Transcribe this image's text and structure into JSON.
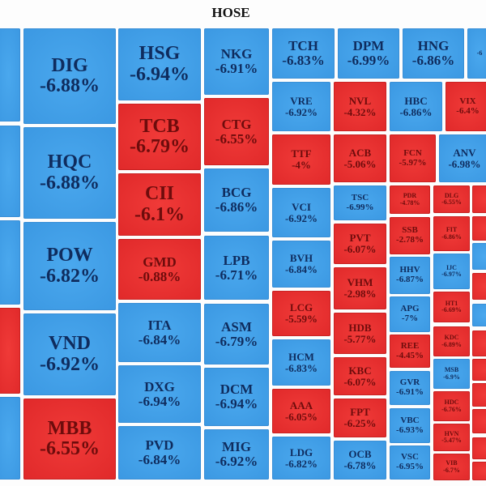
{
  "title": "HOSE",
  "colors": {
    "blue": "#3d9be4",
    "red": "#e8302f",
    "blue_text": "#0f2c5e",
    "red_text": "#6e0c0c"
  },
  "cells": [
    {
      "ticker": "",
      "change": "",
      "color": "blue"
    },
    {
      "ticker": "",
      "change": "",
      "color": "blue"
    },
    {
      "ticker": "",
      "change": "",
      "color": "blue"
    },
    {
      "ticker": "",
      "change": "",
      "color": "red"
    },
    {
      "ticker": "",
      "change": "",
      "color": "blue"
    },
    {
      "ticker": "DIG",
      "change": "-6.88%",
      "color": "blue"
    },
    {
      "ticker": "HQC",
      "change": "-6.88%",
      "color": "blue"
    },
    {
      "ticker": "POW",
      "change": "-6.82%",
      "color": "blue"
    },
    {
      "ticker": "VND",
      "change": "-6.92%",
      "color": "blue"
    },
    {
      "ticker": "MBB",
      "change": "-6.55%",
      "color": "red"
    },
    {
      "ticker": "HSG",
      "change": "-6.94%",
      "color": "blue"
    },
    {
      "ticker": "TCB",
      "change": "-6.79%",
      "color": "red"
    },
    {
      "ticker": "CII",
      "change": "-6.1%",
      "color": "red"
    },
    {
      "ticker": "GMD",
      "change": "-0.88%",
      "color": "red"
    },
    {
      "ticker": "ITA",
      "change": "-6.84%",
      "color": "blue"
    },
    {
      "ticker": "DXG",
      "change": "-6.94%",
      "color": "blue"
    },
    {
      "ticker": "PVD",
      "change": "-6.84%",
      "color": "blue"
    },
    {
      "ticker": "NKG",
      "change": "-6.91%",
      "color": "blue"
    },
    {
      "ticker": "CTG",
      "change": "-6.55%",
      "color": "red"
    },
    {
      "ticker": "BCG",
      "change": "-6.86%",
      "color": "blue"
    },
    {
      "ticker": "LPB",
      "change": "-6.71%",
      "color": "blue"
    },
    {
      "ticker": "ASM",
      "change": "-6.79%",
      "color": "blue"
    },
    {
      "ticker": "DCM",
      "change": "-6.94%",
      "color": "blue"
    },
    {
      "ticker": "MIG",
      "change": "-6.92%",
      "color": "blue"
    },
    {
      "ticker": "TCH",
      "change": "-6.83%",
      "color": "blue"
    },
    {
      "ticker": "DPM",
      "change": "-6.99%",
      "color": "blue"
    },
    {
      "ticker": "HNG",
      "change": "-6.86%",
      "color": "blue"
    },
    {
      "ticker": "",
      "change": "-6",
      "color": "blue"
    },
    {
      "ticker": "VRE",
      "change": "-6.92%",
      "color": "blue"
    },
    {
      "ticker": "NVL",
      "change": "-4.32%",
      "color": "red"
    },
    {
      "ticker": "HBC",
      "change": "-6.86%",
      "color": "blue"
    },
    {
      "ticker": "VIX",
      "change": "-6.4%",
      "color": "red"
    },
    {
      "ticker": "TTF",
      "change": "-4%",
      "color": "red"
    },
    {
      "ticker": "VCI",
      "change": "-6.92%",
      "color": "blue"
    },
    {
      "ticker": "BVH",
      "change": "-6.84%",
      "color": "blue"
    },
    {
      "ticker": "LCG",
      "change": "-5.59%",
      "color": "red"
    },
    {
      "ticker": "HCM",
      "change": "-6.83%",
      "color": "blue"
    },
    {
      "ticker": "AAA",
      "change": "-6.05%",
      "color": "red"
    },
    {
      "ticker": "LDG",
      "change": "-6.82%",
      "color": "blue"
    },
    {
      "ticker": "ACB",
      "change": "-5.06%",
      "color": "red"
    },
    {
      "ticker": "TSC",
      "change": "-6.99%",
      "color": "blue"
    },
    {
      "ticker": "PVT",
      "change": "-6.07%",
      "color": "red"
    },
    {
      "ticker": "VHM",
      "change": "-2.98%",
      "color": "red"
    },
    {
      "ticker": "HDB",
      "change": "-5.77%",
      "color": "red"
    },
    {
      "ticker": "KBC",
      "change": "-6.07%",
      "color": "red"
    },
    {
      "ticker": "FPT",
      "change": "-6.25%",
      "color": "red"
    },
    {
      "ticker": "OCB",
      "change": "-6.78%",
      "color": "blue"
    },
    {
      "ticker": "FCN",
      "change": "-5.97%",
      "color": "red"
    },
    {
      "ticker": "ANV",
      "change": "-6.98%",
      "color": "blue"
    },
    {
      "ticker": "PDR",
      "change": "-4.78%",
      "color": "red"
    },
    {
      "ticker": "SSB",
      "change": "-2.78%",
      "color": "red"
    },
    {
      "ticker": "HHV",
      "change": "-6.87%",
      "color": "blue"
    },
    {
      "ticker": "APG",
      "change": "-7%",
      "color": "blue"
    },
    {
      "ticker": "REE",
      "change": "-4.45%",
      "color": "red"
    },
    {
      "ticker": "GVR",
      "change": "-6.91%",
      "color": "blue"
    },
    {
      "ticker": "VBC",
      "change": "-6.93%",
      "color": "blue"
    },
    {
      "ticker": "VSC",
      "change": "-6.95%",
      "color": "blue"
    },
    {
      "ticker": "DLG",
      "change": "-6.55%",
      "color": "red"
    },
    {
      "ticker": "FIT",
      "change": "-6.86%",
      "color": "red"
    },
    {
      "ticker": "IJC",
      "change": "-6.97%",
      "color": "blue"
    },
    {
      "ticker": "HT1",
      "change": "-6.69%",
      "color": "red"
    },
    {
      "ticker": "KDC",
      "change": "-6.89%",
      "color": "red"
    },
    {
      "ticker": "MSB",
      "change": "-6.9%",
      "color": "blue"
    },
    {
      "ticker": "HDC",
      "change": "-6.76%",
      "color": "red"
    },
    {
      "ticker": "HVN",
      "change": "-5.47%",
      "color": "red"
    },
    {
      "ticker": "VIB",
      "change": "-6.7%",
      "color": "red"
    },
    {
      "ticker": "",
      "change": "",
      "color": "red"
    },
    {
      "ticker": "",
      "change": "",
      "color": "red"
    },
    {
      "ticker": "",
      "change": "",
      "color": "blue"
    },
    {
      "ticker": "",
      "change": "",
      "color": "red"
    },
    {
      "ticker": "",
      "change": "",
      "color": "blue"
    },
    {
      "ticker": "",
      "change": "",
      "color": "red"
    },
    {
      "ticker": "",
      "change": "",
      "color": "red"
    },
    {
      "ticker": "",
      "change": "",
      "color": "red"
    },
    {
      "ticker": "",
      "change": "",
      "color": "red"
    },
    {
      "ticker": "",
      "change": "",
      "color": "red"
    },
    {
      "ticker": "",
      "change": "",
      "color": "red"
    }
  ]
}
